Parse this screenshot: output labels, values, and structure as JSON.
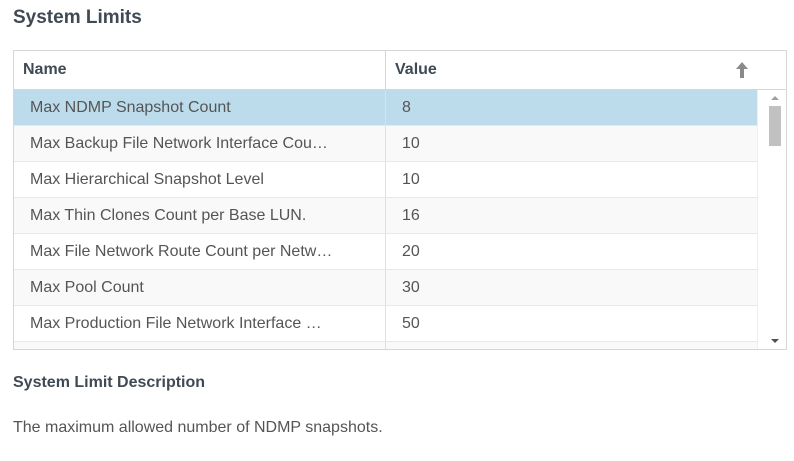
{
  "title": "System Limits",
  "table": {
    "columns": [
      "Name",
      "Value"
    ],
    "sort_icon": "arrow-up-icon",
    "selected_index": 0,
    "rows": [
      {
        "name": "Max NDMP Snapshot Count",
        "value": "8"
      },
      {
        "name": "Max Backup File Network Interface Cou…",
        "value": "10"
      },
      {
        "name": "Max Hierarchical Snapshot Level",
        "value": "10"
      },
      {
        "name": "Max Thin Clones Count per Base LUN.",
        "value": "16"
      },
      {
        "name": "Max File Network Route Count per Netw…",
        "value": "20"
      },
      {
        "name": "Max Pool Count",
        "value": "30"
      },
      {
        "name": "Max Production File Network Interface …",
        "value": "50"
      },
      {
        "name": "",
        "value": ""
      }
    ]
  },
  "description": {
    "heading": "System Limit Description",
    "text": "The maximum allowed number of NDMP snapshots."
  },
  "colors": {
    "selected_row": "#bcdcec"
  }
}
